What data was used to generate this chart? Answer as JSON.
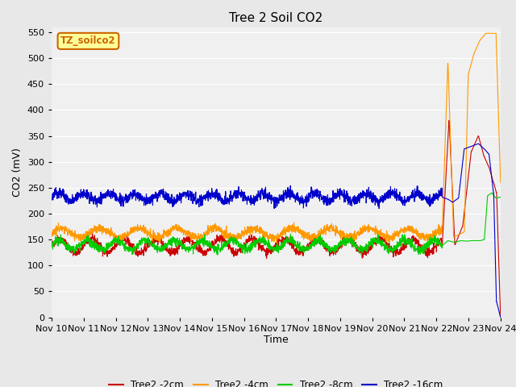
{
  "title": "Tree 2 Soil CO2",
  "xlabel": "Time",
  "ylabel": "CO2 (mV)",
  "ylim": [
    0,
    560
  ],
  "yticks": [
    0,
    50,
    100,
    150,
    200,
    250,
    300,
    350,
    400,
    450,
    500,
    550
  ],
  "xtick_labels": [
    "Nov 10",
    "Nov 11",
    "Nov 12",
    "Nov 13",
    "Nov 14",
    "Nov 15",
    "Nov 16",
    "Nov 17",
    "Nov 18",
    "Nov 19",
    "Nov 20",
    "Nov 21",
    "Nov 22",
    "Nov 23",
    "Nov 24"
  ],
  "colors": {
    "red": "#cc0000",
    "orange": "#ff9900",
    "green": "#00cc00",
    "blue": "#0000cc"
  },
  "legend_labels": [
    "Tree2 -2cm",
    "Tree2 -4cm",
    "Tree2 -8cm",
    "Tree2 -16cm"
  ],
  "legend_colors": [
    "#cc0000",
    "#ff9900",
    "#00cc00",
    "#0000cc"
  ],
  "watermark_text": "TZ_soilco2",
  "watermark_bg": "#ffff99",
  "watermark_border": "#cc6600",
  "fig_bg": "#e8e8e8",
  "plot_bg": "#f0f0f0"
}
